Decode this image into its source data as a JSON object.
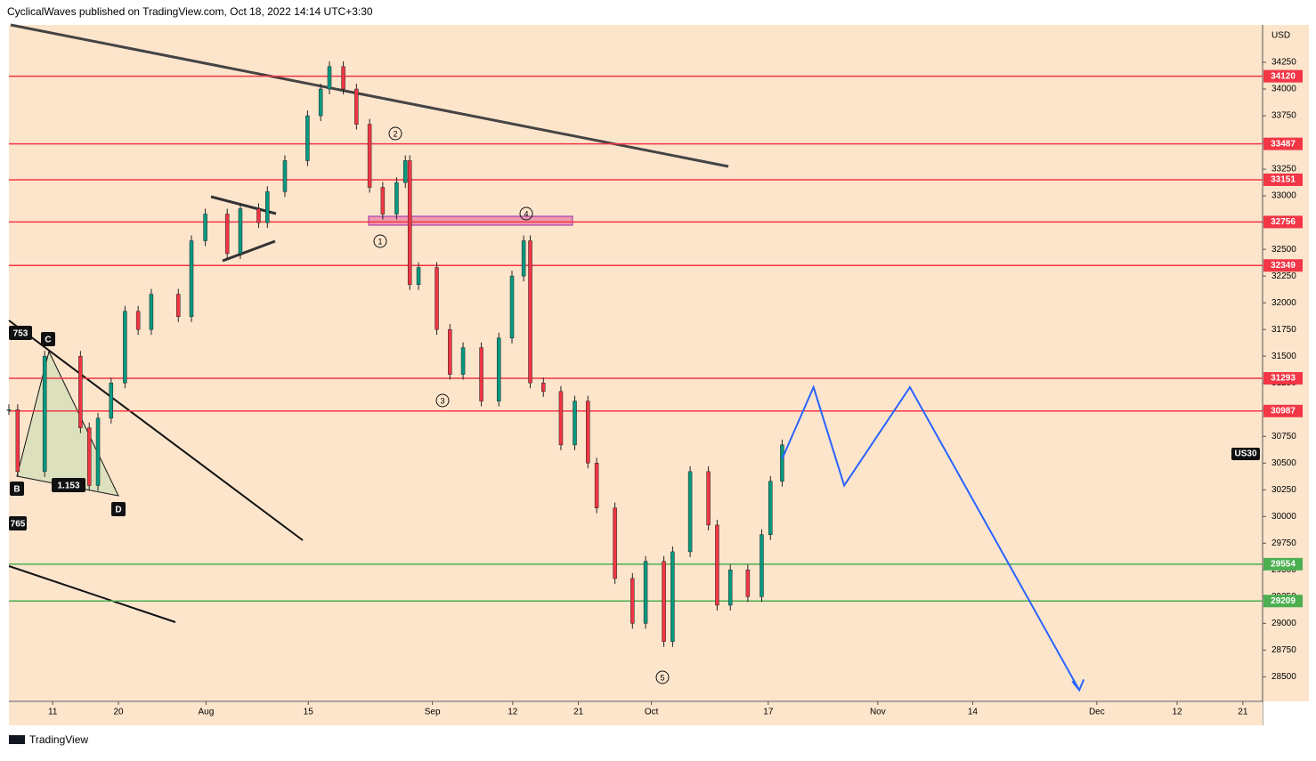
{
  "header": {
    "text": "CyclicalWaves published on TradingView.com, Oct 18, 2022 14:14 UTC+3:30"
  },
  "footer": {
    "text": "TradingView"
  },
  "chart_data": {
    "type": "candlestick",
    "symbol": "US30",
    "currency": "USD",
    "ylim": [
      28270,
      34600
    ],
    "xlim": [
      -6,
      165.7
    ],
    "yticks": [
      28500,
      28750,
      29000,
      29250,
      29500,
      29750,
      30000,
      30250,
      30500,
      30750,
      31000,
      31250,
      31500,
      31750,
      32000,
      32250,
      32500,
      32750,
      33000,
      33250,
      33500,
      33750,
      34000,
      34250
    ],
    "xticks": [
      {
        "value": 0,
        "label": "11"
      },
      {
        "value": 9,
        "label": "20"
      },
      {
        "value": 21,
        "label": "Aug"
      },
      {
        "value": 35,
        "label": "15"
      },
      {
        "value": 52,
        "label": "Sep"
      },
      {
        "value": 63,
        "label": "12"
      },
      {
        "value": 72,
        "label": "21"
      },
      {
        "value": 82,
        "label": "Oct"
      },
      {
        "value": 98,
        "label": "17"
      },
      {
        "value": 113,
        "label": "Nov"
      },
      {
        "value": 126,
        "label": "14"
      },
      {
        "value": 143,
        "label": "Dec"
      },
      {
        "value": 154,
        "label": "12"
      },
      {
        "value": 163,
        "label": "21"
      }
    ],
    "x": [
      -6.0,
      -4.8,
      -1.1,
      3.8,
      5.0,
      6.2,
      8.0,
      9.9,
      11.7,
      13.5,
      17.2,
      19.0,
      20.9,
      23.9,
      25.7,
      28.2,
      29.4,
      31.8,
      34.9,
      36.7,
      37.9,
      39.8,
      41.6,
      43.4,
      45.2,
      47.1,
      48.3,
      48.9,
      50.1,
      52.6,
      54.4,
      56.2,
      58.7,
      61.1,
      62.9,
      64.5,
      65.4,
      67.2,
      69.6,
      71.5,
      73.3,
      74.5,
      77.0,
      79.4,
      81.2,
      83.7,
      84.9,
      87.3,
      89.8,
      91.0,
      92.8,
      95.2,
      97.1,
      98.3,
      99.9
    ],
    "close": [
      31000,
      30420,
      31500,
      30830,
      30290,
      30920,
      31250,
      31920,
      31750,
      32080,
      31870,
      32580,
      32830,
      32460,
      32880,
      32750,
      33040,
      33330,
      33750,
      34000,
      34210,
      34000,
      33670,
      33080,
      32830,
      33125,
      33330,
      32170,
      32330,
      31750,
      31330,
      31580,
      31080,
      31670,
      32250,
      32580,
      31250,
      31170,
      30670,
      31080,
      30500,
      30080,
      29420,
      29000,
      29580,
      28830,
      29670,
      30420,
      29920,
      29170,
      29500,
      29250,
      29830,
      30330,
      30670
    ],
    "up_color": "#089981",
    "down_color": "#f23645",
    "projection": {
      "color": "#2962ff",
      "x": [
        99.9,
        104.2,
        108.4,
        117.4,
        140.6
      ],
      "values": [
        30540,
        31210,
        30290,
        31210,
        28375
      ]
    },
    "levels": [
      {
        "value": 34120,
        "color": "#f23645"
      },
      {
        "value": 33487,
        "color": "#f23645"
      },
      {
        "value": 33151,
        "color": "#f23645"
      },
      {
        "value": 32756,
        "color": "#f23645"
      },
      {
        "value": 32349,
        "color": "#f23645"
      },
      {
        "value": 31293,
        "color": "#f23645"
      },
      {
        "value": 30987,
        "color": "#f23645"
      },
      {
        "value": 29554,
        "color": "#4caf50"
      },
      {
        "value": 29209,
        "color": "#4caf50"
      }
    ],
    "wave_labels": [
      "1",
      "2",
      "3",
      "4",
      "5"
    ],
    "pattern_labels": [
      "753",
      "C",
      "B",
      "1.153",
      "D",
      "765"
    ]
  }
}
